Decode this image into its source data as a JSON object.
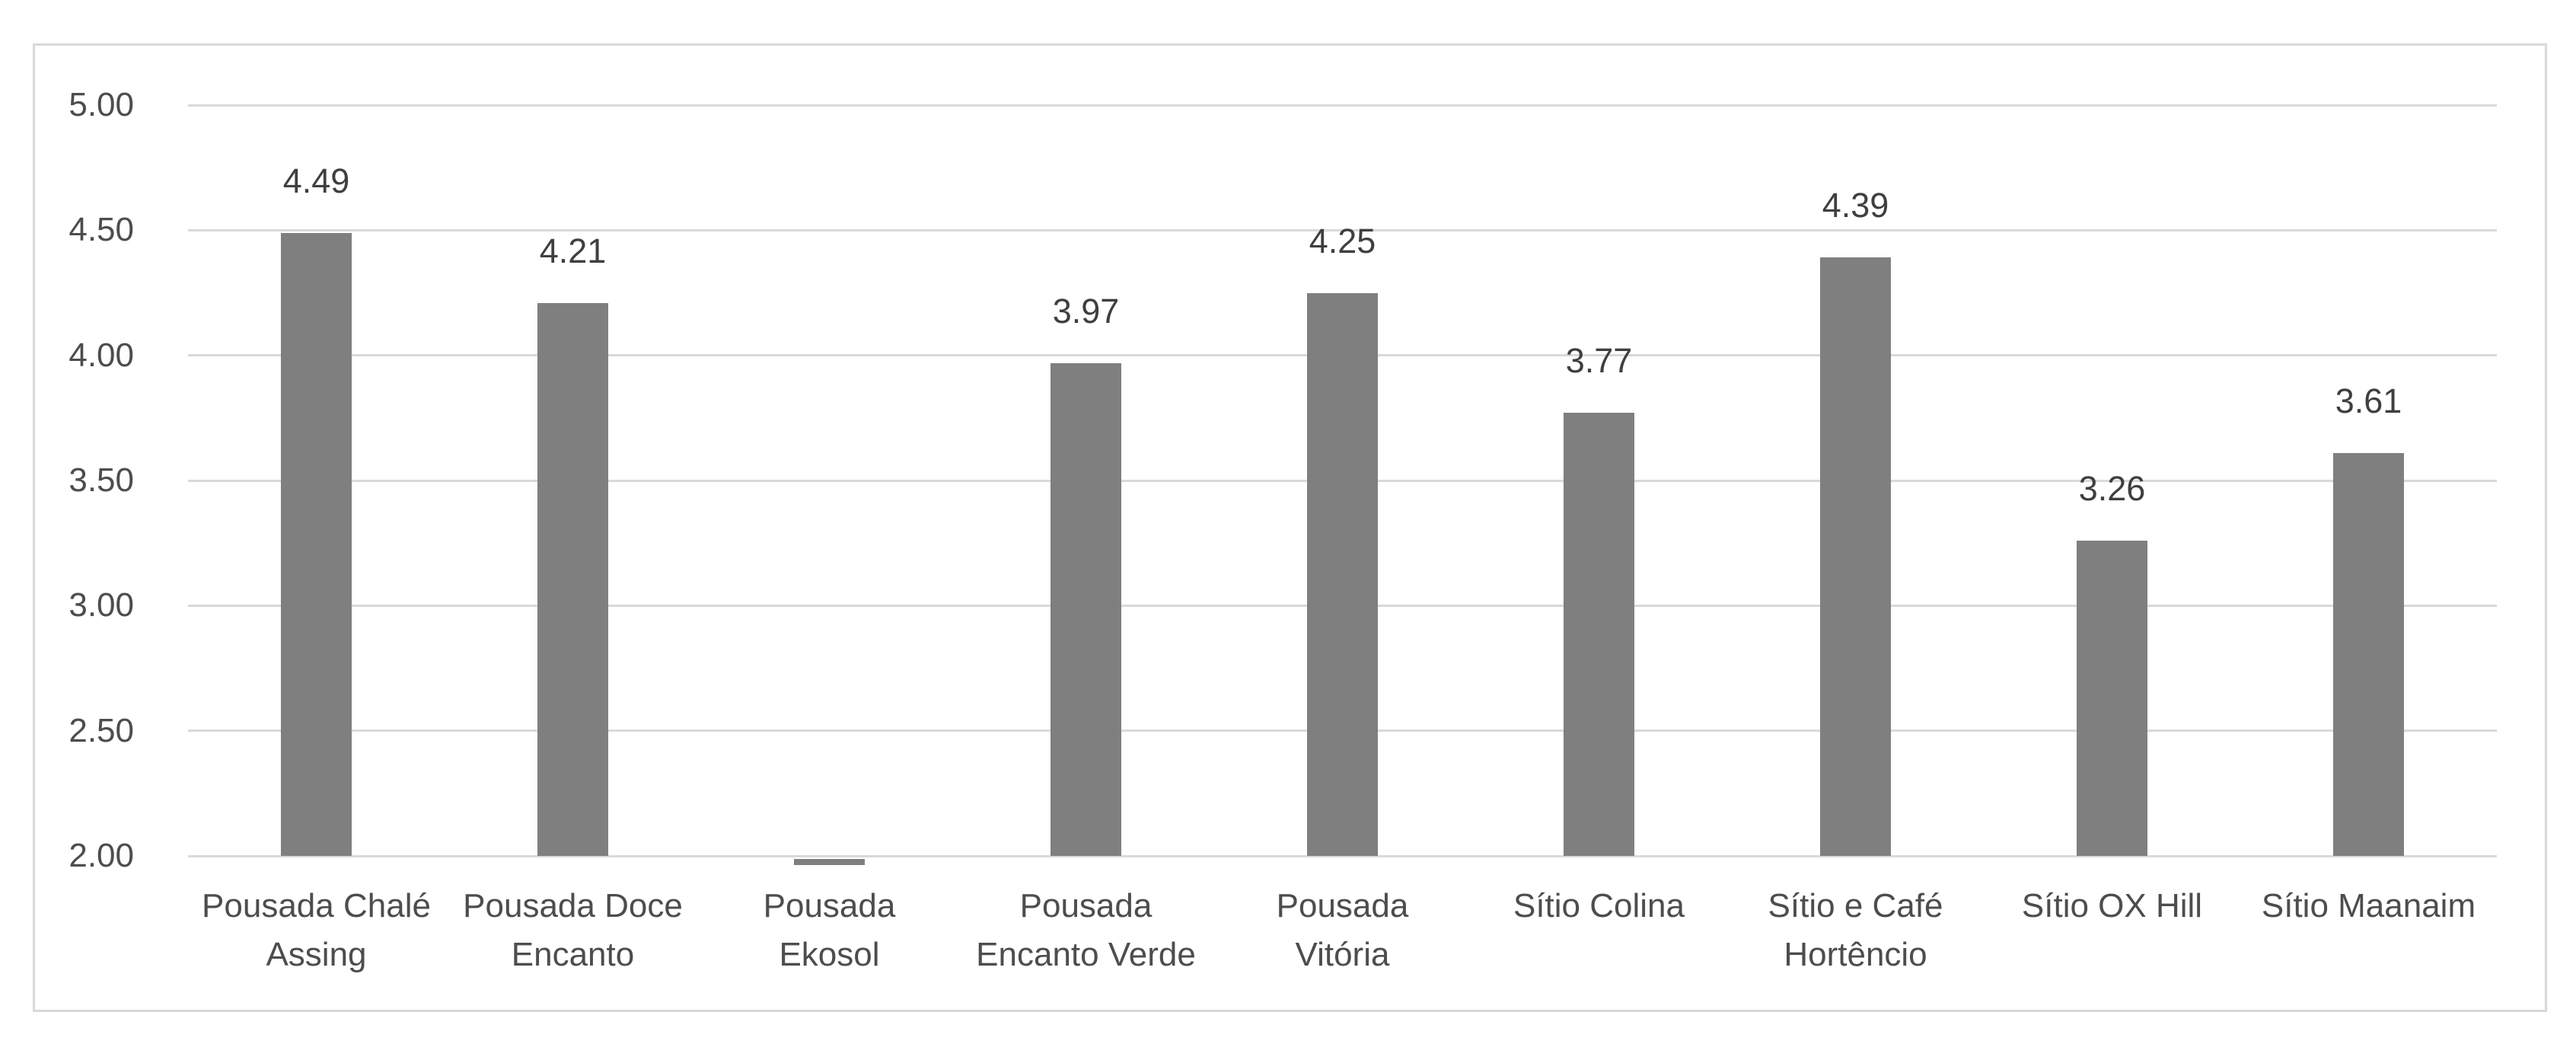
{
  "chart_data": {
    "type": "bar",
    "title": "",
    "xlabel": "",
    "ylabel": "",
    "categories": [
      "Pousada Chalé Assing",
      "Pousada Doce Encanto",
      "Pousada Ekosol",
      "Pousada Encanto Verde",
      "Pousada Vitória",
      "Sítio Colina",
      "Sítio e Café Hortêncio",
      "Sítio OX Hill",
      "Sítio Maanaim"
    ],
    "values": [
      4.49,
      4.21,
      null,
      3.97,
      4.25,
      3.77,
      4.39,
      3.26,
      3.61
    ],
    "data_labels": [
      "4.49",
      "4.21",
      "",
      "3.97",
      "4.25",
      "3.77",
      "4.39",
      "3.26",
      "3.61"
    ],
    "category_label_lines": [
      [
        "Pousada Chalé",
        "Assing"
      ],
      [
        "Pousada Doce",
        "Encanto"
      ],
      [
        "Pousada",
        "Ekosol"
      ],
      [
        "Pousada",
        "Encanto Verde"
      ],
      [
        "Pousada",
        "Vitória"
      ],
      [
        "Sítio Colina"
      ],
      [
        "Sítio e Café",
        "Hortêncio"
      ],
      [
        "Sítio OX Hill"
      ],
      [
        "Sítio Maanaim"
      ]
    ],
    "y_ticks": [
      "5.00",
      "4.50",
      "4.00",
      "3.50",
      "3.00",
      "2.50",
      "2.00"
    ],
    "ylim": [
      2.0,
      5.0
    ],
    "grid": true,
    "legend": false,
    "notes": "Single gray data series; bar for Pousada Ekosol falls below the axis minimum of 2.00 and is rendered as a thin sliver just under the baseline with no visible data label.",
    "colors": {
      "bar": "#7F7F7F",
      "gridline": "#D9D9D9",
      "chart_border": "#D9D9D9",
      "tick_label": "#4D4D4D",
      "category_label": "#4D4D4D",
      "data_label": "#3F3F3F",
      "background": "#FFFFFF"
    }
  }
}
